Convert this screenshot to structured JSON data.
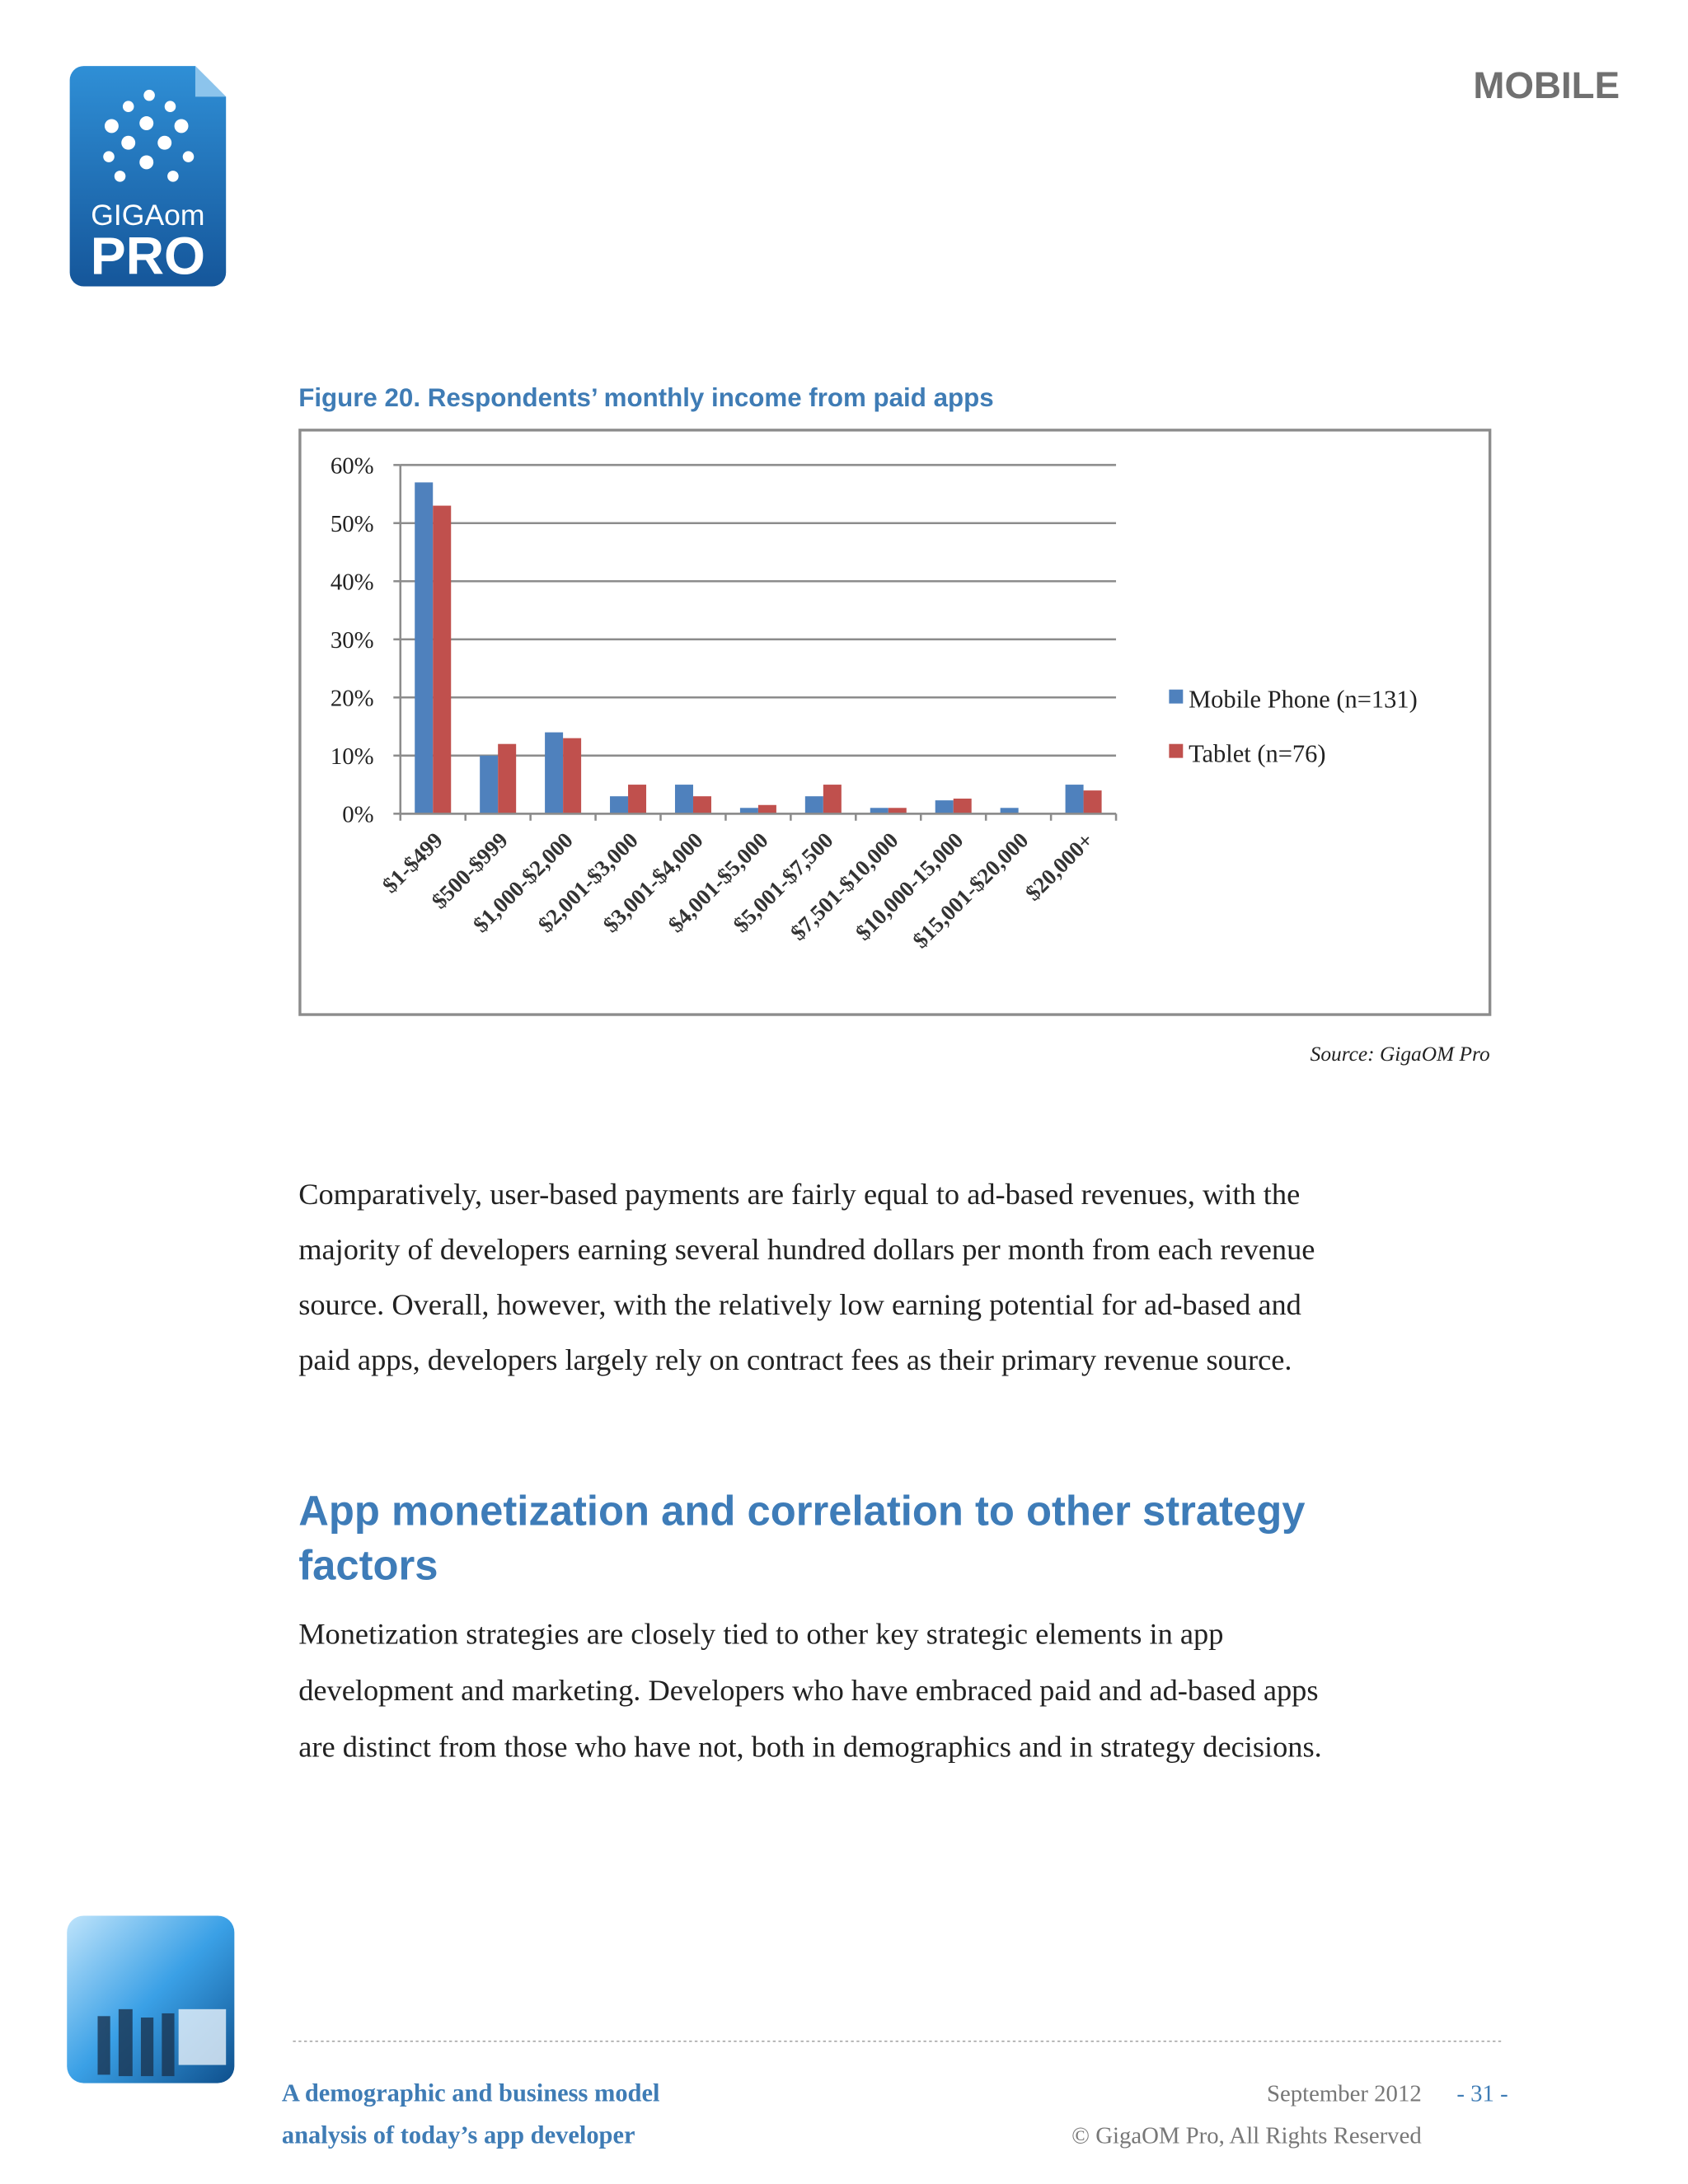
{
  "header": {
    "section": "MOBILE",
    "logo": {
      "top": "GIGAom",
      "bottom": "PRO"
    }
  },
  "figure": {
    "caption": "Figure 20. Respondents’ monthly income from paid apps",
    "source": "Source: GigaOM Pro"
  },
  "chart_data": {
    "type": "bar",
    "categories": [
      "$1-$499",
      "$500-$999",
      "$1,000-$2,000",
      "$2,001-$3,000",
      "$3,001-$4,000",
      "$4,001-$5,000",
      "$5,001-$7,500",
      "$7,501-$10,000",
      "$10,000-15,000",
      "$15,001-$20,000",
      "$20,000+"
    ],
    "series": [
      {
        "name": "Mobile Phone (n=131)",
        "color": "#4f81bd",
        "values": [
          57,
          10,
          14,
          3,
          5,
          1,
          3,
          1,
          2.3,
          1,
          5
        ]
      },
      {
        "name": "Tablet (n=76)",
        "color": "#c0504d",
        "values": [
          53,
          12,
          13,
          5,
          3,
          1.5,
          5,
          1,
          2.6,
          0,
          4
        ]
      }
    ],
    "ylim": [
      0,
      60
    ],
    "yticks": [
      {
        "value": 0,
        "label": "0%"
      },
      {
        "value": 10,
        "label": "10%"
      },
      {
        "value": 20,
        "label": "20%"
      },
      {
        "value": 30,
        "label": "30%"
      },
      {
        "value": 40,
        "label": "40%"
      },
      {
        "value": 50,
        "label": "50%"
      },
      {
        "value": 60,
        "label": "60%"
      }
    ],
    "grid": true,
    "legend": "right"
  },
  "body": {
    "paragraph1": [
      "Comparatively, user-based payments are fairly equal to ad-based revenues, with the",
      "majority of developers earning several hundred dollars per month from each revenue",
      "source. Overall, however, with the relatively low earning potential for ad-based and",
      "paid apps, developers largely rely on contract fees as their primary revenue source."
    ],
    "heading": [
      "App monetization and correlation to other strategy",
      "factors"
    ],
    "paragraph2": [
      "Monetization strategies are closely tied to other key strategic elements in app",
      "development and marketing. Developers who have embraced paid and ad-based apps",
      "are distinct from those who have not, both in demographics and in strategy decisions."
    ]
  },
  "footer": {
    "title": [
      "A demographic and business model",
      "analysis of today’s app developer"
    ],
    "date": "September 2012",
    "page": "- 31 -",
    "copyright": "© GigaOM Pro, All Rights Reserved"
  }
}
